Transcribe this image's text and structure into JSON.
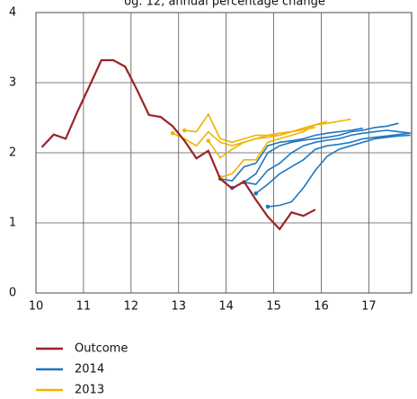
{
  "chart_data": {
    "type": "line",
    "title": "og. 12, annual percentage change",
    "xlim": [
      10,
      17.9
    ],
    "xticks": [
      10,
      11,
      12,
      13,
      14,
      15,
      16,
      17
    ],
    "ylim": [
      0,
      4
    ],
    "yticks": [
      0,
      1,
      2,
      3,
      4
    ],
    "grid": true,
    "series": [
      {
        "name": "Outcome",
        "color": "#9b2327",
        "forecasts": [
          {
            "x": [
              10.125,
              10.375,
              10.625,
              10.875,
              11.125,
              11.375,
              11.625,
              11.875,
              12.125,
              12.375,
              12.625,
              12.875,
              13.125,
              13.375,
              13.625,
              13.875,
              14.125,
              14.375,
              14.625,
              14.875,
              15.125,
              15.375,
              15.625,
              15.875
            ],
            "values": [
              2.08,
              2.26,
              2.2,
              2.59,
              2.95,
              3.32,
              3.32,
              3.23,
              2.9,
              2.54,
              2.51,
              2.38,
              2.17,
              1.92,
              2.03,
              1.63,
              1.49,
              1.59,
              1.33,
              1.09,
              0.91,
              1.15,
              1.1,
              1.19
            ]
          }
        ]
      },
      {
        "name": "2014",
        "color": "#1f77c0",
        "forecasts": [
          {
            "x": [
              13.875,
              14.125,
              14.375,
              14.625,
              14.875,
              15.125,
              15.375,
              15.625,
              15.875,
              16.125,
              16.375,
              16.625,
              16.875
            ],
            "values": [
              1.63,
              1.6,
              1.8,
              1.85,
              2.1,
              2.15,
              2.17,
              2.2,
              2.25,
              2.28,
              2.3,
              2.32,
              2.35
            ]
          },
          {
            "x": [
              14.125,
              14.375,
              14.625,
              14.875,
              15.125,
              15.375,
              15.625,
              15.875,
              16.125,
              16.375,
              16.625,
              16.875,
              17.125,
              17.375,
              17.625
            ],
            "values": [
              1.5,
              1.58,
              1.7,
              2.0,
              2.1,
              2.15,
              2.18,
              2.2,
              2.22,
              2.25,
              2.3,
              2.32,
              2.36,
              2.38,
              2.42
            ]
          },
          {
            "x": [
              14.375,
              14.625,
              14.875,
              15.125,
              15.375,
              15.625,
              15.875,
              16.125,
              16.375,
              16.625,
              16.875,
              17.125,
              17.375,
              17.625,
              17.875
            ],
            "values": [
              1.58,
              1.55,
              1.75,
              1.85,
              2.0,
              2.1,
              2.15,
              2.18,
              2.2,
              2.25,
              2.28,
              2.3,
              2.32,
              2.3,
              2.28
            ]
          },
          {
            "x": [
              14.625,
              14.875,
              15.125,
              15.375,
              15.625,
              15.875,
              16.125,
              16.375,
              16.625,
              16.875,
              17.125,
              17.375,
              17.625,
              17.875
            ],
            "values": [
              1.42,
              1.55,
              1.7,
              1.8,
              1.9,
              2.05,
              2.1,
              2.12,
              2.15,
              2.2,
              2.22,
              2.24,
              2.26,
              2.28
            ]
          },
          {
            "x": [
              14.875,
              15.125,
              15.375,
              15.625,
              15.875,
              16.125,
              16.375,
              16.625,
              16.875,
              17.125,
              17.375,
              17.625,
              17.875
            ],
            "values": [
              1.23,
              1.25,
              1.3,
              1.5,
              1.75,
              1.95,
              2.05,
              2.1,
              2.15,
              2.2,
              2.22,
              2.24,
              2.25
            ]
          }
        ]
      },
      {
        "name": "2013",
        "color": "#f0b400",
        "forecasts": [
          {
            "x": [
              12.875,
              13.125,
              13.375,
              13.625,
              13.875,
              14.125,
              14.375,
              14.625,
              14.875,
              15.125,
              15.375,
              15.625,
              15.875
            ],
            "values": [
              2.28,
              2.2,
              2.1,
              2.3,
              2.15,
              2.1,
              2.15,
              2.2,
              2.25,
              2.28,
              2.3,
              2.33,
              2.36
            ]
          },
          {
            "x": [
              13.125,
              13.375,
              13.625,
              13.875,
              14.125,
              14.375,
              14.625,
              14.875,
              15.125,
              15.375,
              15.625,
              15.875,
              16.125
            ],
            "values": [
              2.32,
              2.3,
              2.55,
              2.2,
              2.15,
              2.2,
              2.25,
              2.25,
              2.25,
              2.3,
              2.35,
              2.4,
              2.45
            ]
          },
          {
            "x": [
              13.625,
              13.875,
              14.125,
              14.375,
              14.625,
              14.875,
              15.125,
              15.375,
              15.625,
              15.875,
              16.125
            ],
            "values": [
              2.17,
              1.93,
              2.05,
              2.15,
              2.2,
              2.22,
              2.25,
              2.3,
              2.35,
              2.4,
              2.42
            ]
          },
          {
            "x": [
              13.875,
              14.125,
              14.375,
              14.625,
              14.875,
              15.125,
              15.375,
              15.625,
              15.875,
              16.125,
              16.375,
              16.625
            ],
            "values": [
              1.65,
              1.7,
              1.9,
              1.9,
              2.15,
              2.2,
              2.25,
              2.3,
              2.4,
              2.42,
              2.45,
              2.48
            ]
          }
        ]
      }
    ]
  }
}
